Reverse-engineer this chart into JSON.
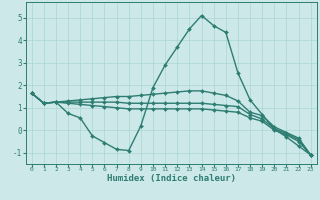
{
  "xlabel": "Humidex (Indice chaleur)",
  "xlim": [
    -0.5,
    23.5
  ],
  "ylim": [
    -1.5,
    5.7
  ],
  "xticks": [
    0,
    1,
    2,
    3,
    4,
    5,
    6,
    7,
    8,
    9,
    10,
    11,
    12,
    13,
    14,
    15,
    16,
    17,
    18,
    19,
    20,
    21,
    22,
    23
  ],
  "yticks": [
    -1,
    0,
    1,
    2,
    3,
    4,
    5
  ],
  "background_color": "#cce8e8",
  "grid_color": "#aad4d4",
  "line_color": "#2e7d72",
  "line_width": 1.0,
  "marker": "D",
  "marker_size": 2.0,
  "lines": [
    [
      1.65,
      1.2,
      1.25,
      0.75,
      0.55,
      -0.25,
      -0.55,
      -0.85,
      -0.9,
      0.2,
      1.9,
      2.9,
      3.7,
      4.5,
      5.1,
      4.65,
      4.35,
      2.55,
      1.35,
      0.7,
      0.05,
      -0.3,
      -0.7,
      -1.1
    ],
    [
      1.65,
      1.2,
      1.25,
      1.3,
      1.35,
      1.4,
      1.45,
      1.5,
      1.5,
      1.55,
      1.6,
      1.65,
      1.7,
      1.75,
      1.75,
      1.65,
      1.55,
      1.3,
      0.8,
      0.65,
      0.15,
      -0.1,
      -0.35,
      -1.1
    ],
    [
      1.65,
      1.2,
      1.25,
      1.2,
      1.15,
      1.1,
      1.05,
      1.0,
      0.95,
      0.95,
      0.95,
      0.95,
      0.95,
      0.95,
      0.95,
      0.9,
      0.85,
      0.8,
      0.55,
      0.4,
      0.0,
      -0.2,
      -0.5,
      -1.1
    ],
    [
      1.65,
      1.2,
      1.25,
      1.25,
      1.25,
      1.25,
      1.25,
      1.25,
      1.2,
      1.2,
      1.2,
      1.2,
      1.2,
      1.2,
      1.2,
      1.15,
      1.1,
      1.05,
      0.7,
      0.5,
      0.07,
      -0.15,
      -0.42,
      -1.1
    ]
  ]
}
